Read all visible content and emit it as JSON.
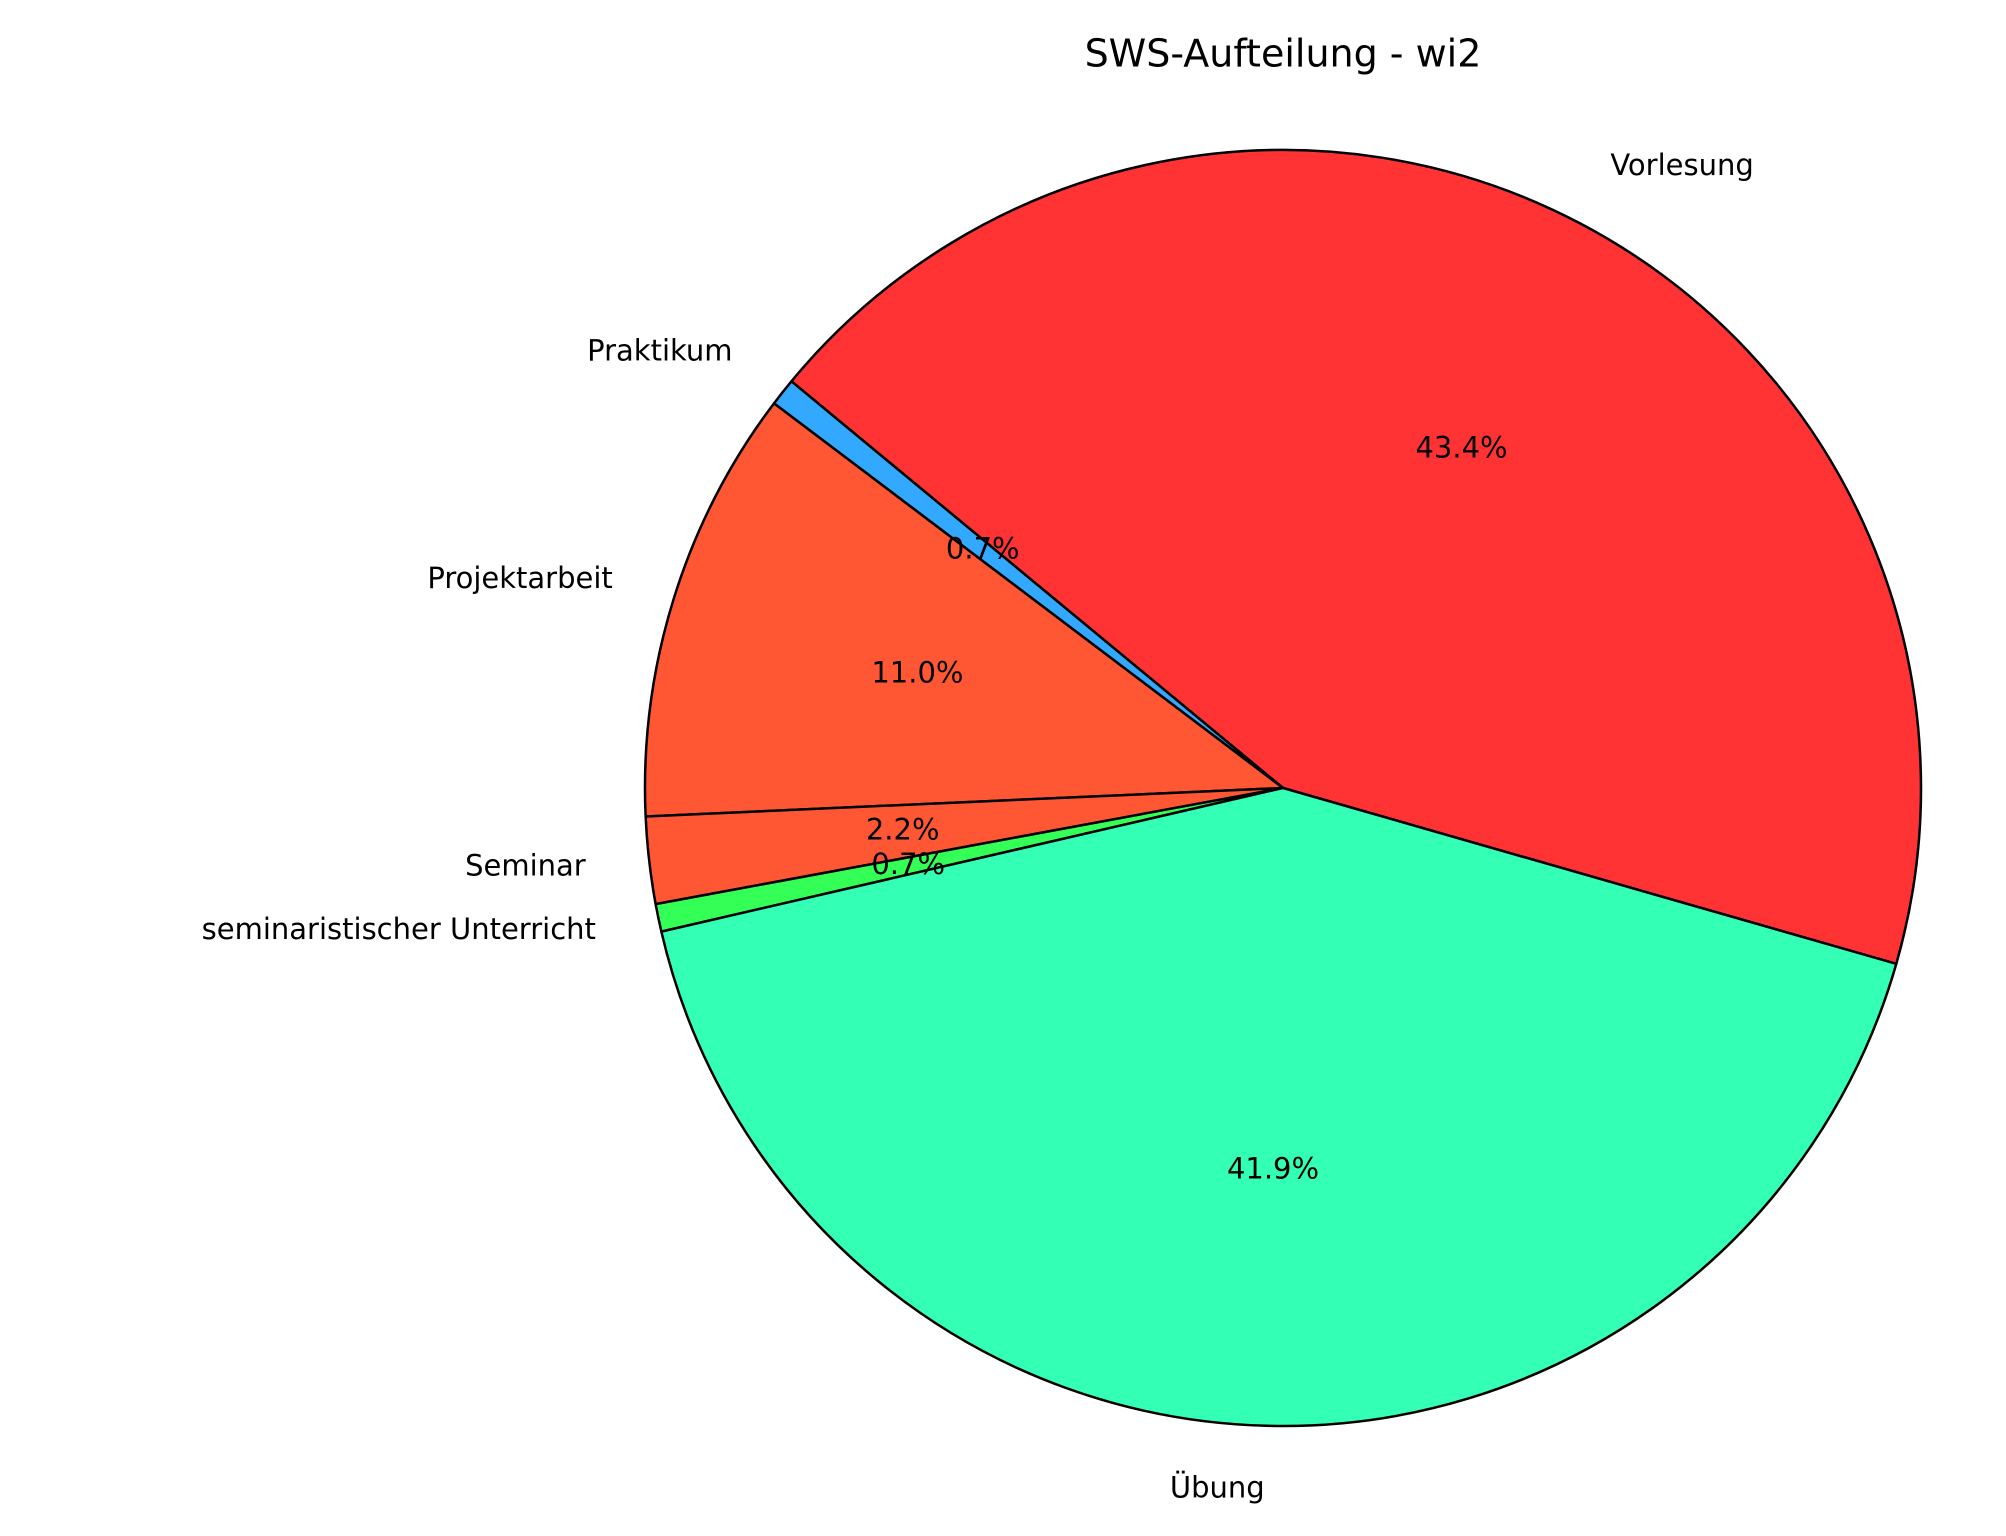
{
  "chart_data": {
    "type": "pie",
    "title": "SWS-Aufteilung - wi2",
    "categories": [
      "Vorlesung",
      "Praktikum",
      "Projektarbeit",
      "Seminar",
      "seminaristischer Unterricht",
      "Übung"
    ],
    "values": [
      43.4,
      0.7,
      11.0,
      2.2,
      0.7,
      41.9
    ],
    "value_labels": [
      "43.4%",
      "0.7%",
      "11.0%",
      "2.2%",
      "0.7%",
      "41.9%"
    ],
    "colors": [
      "#ff3333",
      "#33a8ff",
      "#ff5733",
      "#ff5733",
      "#33ff57",
      "#33ffb5"
    ]
  }
}
